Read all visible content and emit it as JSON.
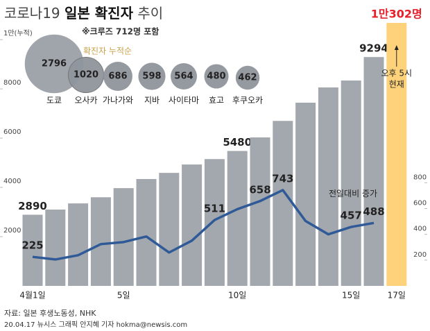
{
  "title_parts": [
    "코로나19",
    "일본 확진자",
    "추이"
  ],
  "subtitle": "※크루즈 712명 포함",
  "annotation": [
    "오후 5시",
    "현재"
  ],
  "source": "자료: 일본 후생노동성, NHK",
  "credit": "20.04.17 뉴시스 그래픽 안지혜 기자 hokma@newsis.com",
  "chart_data": [
    {
      "type": "bar",
      "categories": [
        "4월1일",
        null,
        null,
        null,
        "5일",
        null,
        null,
        null,
        null,
        "10일",
        null,
        null,
        null,
        null,
        "15일",
        null,
        "17일"
      ],
      "ylim": [
        0,
        10680
      ],
      "yticks": [
        2000,
        4000,
        6000,
        8000,
        {
          "value": 10000,
          "label": "1만(누적)"
        }
      ],
      "y2lim": [
        0,
        2040
      ],
      "y2ticks": [
        200,
        400,
        600,
        800
      ],
      "series": [
        {
          "color": "#a3a8ae",
          "highlight_color": "#fdd27a",
          "values": [
            2890,
            3100,
            3350,
            3600,
            3970,
            4340,
            4590,
            4930,
            5150,
            5480,
            6030,
            6700,
            7440,
            8060,
            8340,
            9294,
            10302
          ],
          "value_labels": [
            "2890",
            null,
            null,
            null,
            null,
            null,
            null,
            null,
            null,
            "5480",
            null,
            null,
            null,
            null,
            null,
            "9294",
            "1만302명"
          ]
        },
        {
          "name": "전일대비 증가",
          "axis": "y2",
          "type": "line",
          "color": "#2f5a97",
          "values": [
            225,
            205,
            238,
            324,
            340,
            383,
            259,
            351,
            511,
            595,
            658,
            743,
            503,
            400,
            457,
            488,
            null
          ],
          "value_labels": [
            "225",
            null,
            null,
            null,
            null,
            null,
            null,
            null,
            "511",
            null,
            "658",
            "743",
            null,
            null,
            "457",
            "488",
            null
          ]
        }
      ]
    },
    {
      "type": "bubble",
      "legend": "확진자 누적순",
      "color": "#8f959c",
      "categories": [
        "도쿄",
        "오사카",
        "가나가와",
        "지바",
        "사이타마",
        "효고",
        "후쿠오카"
      ],
      "values": [
        2796,
        1020,
        686,
        598,
        564,
        480,
        462
      ]
    }
  ]
}
